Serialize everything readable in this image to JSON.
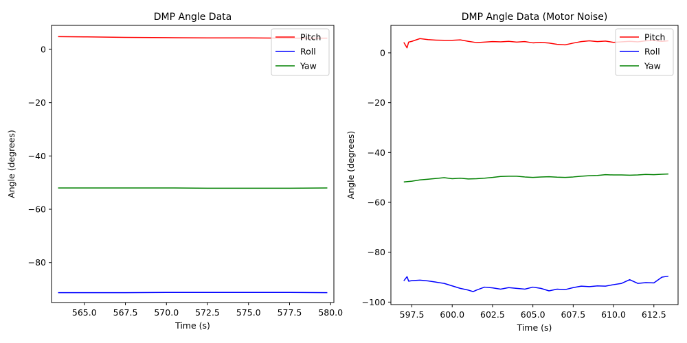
{
  "chart_data": [
    {
      "type": "line",
      "title": "DMP Angle Data",
      "xlabel": "Time (s)",
      "ylabel": "Angle (degrees)",
      "xlim": [
        563.0,
        580.2
      ],
      "ylim": [
        -95,
        9
      ],
      "xticks": [
        565.0,
        567.5,
        570.0,
        572.5,
        575.0,
        577.5,
        580.0
      ],
      "xtick_labels": [
        "565.0",
        "567.5",
        "570.0",
        "572.5",
        "575.0",
        "577.5",
        "580.0"
      ],
      "yticks": [
        0,
        -20,
        -40,
        -60,
        -80
      ],
      "ytick_labels": [
        "0",
        "−20",
        "−40",
        "−60",
        "−80"
      ],
      "grid": false,
      "legend_position": "top-right",
      "series": [
        {
          "name": "Pitch",
          "color": "#ff0000",
          "x": [
            563.4,
            565.0,
            567.5,
            570.0,
            572.5,
            575.0,
            577.5,
            579.8
          ],
          "y": [
            4.8,
            4.7,
            4.5,
            4.4,
            4.3,
            4.3,
            4.2,
            4.2
          ]
        },
        {
          "name": "Roll",
          "color": "#0000ff",
          "x": [
            563.4,
            565.0,
            567.5,
            570.0,
            572.5,
            575.0,
            577.5,
            579.8
          ],
          "y": [
            -91.3,
            -91.3,
            -91.3,
            -91.2,
            -91.2,
            -91.2,
            -91.2,
            -91.3
          ]
        },
        {
          "name": "Yaw",
          "color": "#008000",
          "x": [
            563.4,
            565.0,
            567.5,
            570.0,
            572.5,
            575.0,
            577.5,
            579.8
          ],
          "y": [
            -52.0,
            -52.0,
            -52.0,
            -52.0,
            -52.1,
            -52.1,
            -52.1,
            -52.0
          ]
        }
      ]
    },
    {
      "type": "line",
      "title": "DMP Angle Data (Motor Noise)",
      "xlabel": "Time (s)",
      "ylabel": "Angle (degrees)",
      "xlim": [
        596.2,
        614.0
      ],
      "ylim": [
        -101,
        11
      ],
      "xticks": [
        597.5,
        600.0,
        602.5,
        605.0,
        607.5,
        610.0,
        612.5
      ],
      "xtick_labels": [
        "597.5",
        "600.0",
        "602.5",
        "605.0",
        "607.5",
        "610.0",
        "612.5"
      ],
      "yticks": [
        0,
        -20,
        -40,
        -60,
        -80,
        -100
      ],
      "ytick_labels": [
        "0",
        "−20",
        "−40",
        "−60",
        "−80",
        "−100"
      ],
      "grid": false,
      "legend_position": "top-right",
      "series": [
        {
          "name": "Pitch",
          "color": "#ff0000",
          "x": [
            597.0,
            597.2,
            597.3,
            597.5,
            598.0,
            598.5,
            599.0,
            599.5,
            600.0,
            600.5,
            601.0,
            601.5,
            602.0,
            602.5,
            603.0,
            603.5,
            604.0,
            604.5,
            605.0,
            605.5,
            606.0,
            606.5,
            607.0,
            607.5,
            608.0,
            608.5,
            609.0,
            609.5,
            610.0,
            610.5,
            611.0,
            611.5,
            612.0,
            612.5,
            613.0,
            613.4
          ],
          "y": [
            4.2,
            2.0,
            4.3,
            4.6,
            5.7,
            5.3,
            5.1,
            5.0,
            5.0,
            5.2,
            4.6,
            4.1,
            4.3,
            4.5,
            4.4,
            4.6,
            4.3,
            4.5,
            4.0,
            4.2,
            3.9,
            3.4,
            3.2,
            3.9,
            4.5,
            4.8,
            4.5,
            4.7,
            4.2,
            4.4,
            4.6,
            4.4,
            4.8,
            4.9,
            4.6,
            4.8
          ]
        },
        {
          "name": "Roll",
          "color": "#0000ff",
          "x": [
            597.0,
            597.2,
            597.3,
            597.5,
            598.0,
            598.5,
            599.0,
            599.5,
            600.0,
            600.5,
            601.0,
            601.3,
            601.5,
            602.0,
            602.5,
            603.0,
            603.5,
            604.0,
            604.5,
            605.0,
            605.5,
            606.0,
            606.5,
            607.0,
            607.5,
            608.0,
            608.5,
            609.0,
            609.5,
            610.0,
            610.5,
            611.0,
            611.5,
            612.0,
            612.5,
            613.0,
            613.4
          ],
          "y": [
            -91.5,
            -89.8,
            -91.6,
            -91.4,
            -91.2,
            -91.5,
            -92.0,
            -92.5,
            -93.5,
            -94.5,
            -95.2,
            -95.8,
            -95.2,
            -94.0,
            -94.3,
            -94.8,
            -94.2,
            -94.5,
            -94.8,
            -94.0,
            -94.5,
            -95.5,
            -94.8,
            -95.0,
            -94.2,
            -93.6,
            -93.8,
            -93.5,
            -93.6,
            -93.0,
            -92.5,
            -91.0,
            -92.5,
            -92.2,
            -92.3,
            -90.0,
            -89.6
          ]
        },
        {
          "name": "Yaw",
          "color": "#008000",
          "x": [
            597.0,
            597.5,
            598.0,
            598.5,
            599.0,
            599.5,
            600.0,
            600.5,
            601.0,
            601.5,
            602.0,
            602.5,
            603.0,
            603.5,
            604.0,
            604.5,
            605.0,
            605.5,
            606.0,
            606.5,
            607.0,
            607.5,
            608.0,
            608.5,
            609.0,
            609.5,
            610.0,
            610.5,
            611.0,
            611.5,
            612.0,
            612.5,
            613.0,
            613.4
          ],
          "y": [
            -51.8,
            -51.5,
            -51.0,
            -50.7,
            -50.4,
            -50.1,
            -50.5,
            -50.3,
            -50.6,
            -50.5,
            -50.3,
            -50.0,
            -49.6,
            -49.5,
            -49.5,
            -49.8,
            -50.0,
            -49.8,
            -49.7,
            -49.9,
            -50.0,
            -49.8,
            -49.5,
            -49.3,
            -49.2,
            -48.9,
            -49.0,
            -49.0,
            -49.1,
            -49.0,
            -48.8,
            -48.9,
            -48.7,
            -48.6
          ]
        }
      ]
    }
  ]
}
